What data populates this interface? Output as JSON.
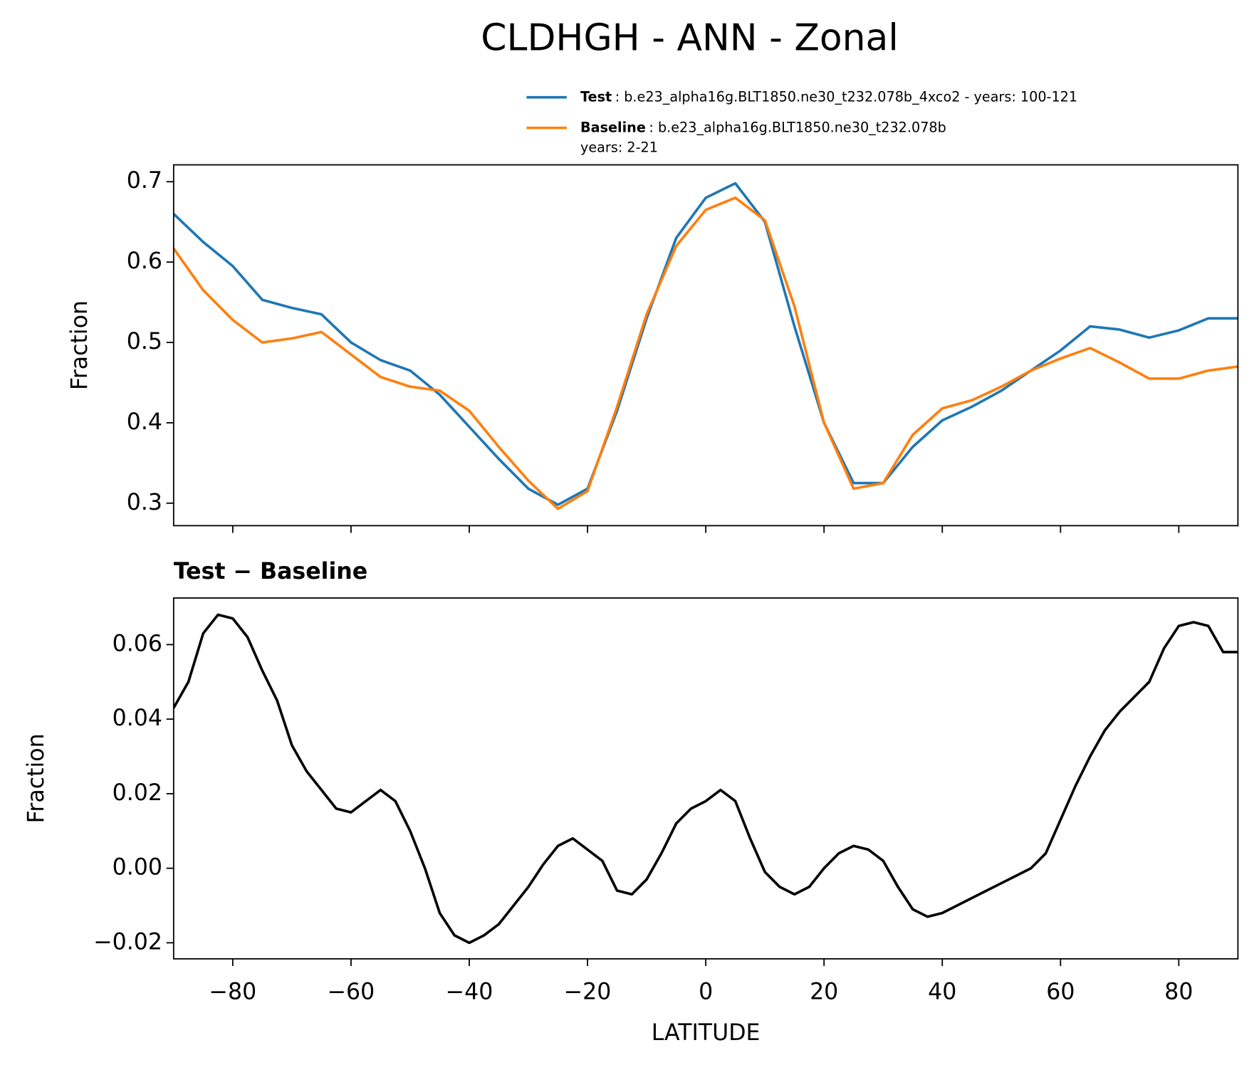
{
  "title": "CLDHGH - ANN - Zonal",
  "chart_data": [
    {
      "type": "line",
      "ylabel": "Fraction",
      "legend": "upper right",
      "xlim": [
        -90,
        90
      ],
      "xticks": [
        -80,
        -60,
        -40,
        -20,
        0,
        20,
        40,
        60,
        80
      ],
      "ylim": [
        0.272,
        0.721
      ],
      "yticks": [
        0.3,
        0.4,
        0.5,
        0.6,
        0.7
      ],
      "x": [
        -90,
        -85,
        -80,
        -75,
        -70,
        -65,
        -60,
        -55,
        -50,
        -45,
        -40,
        -35,
        -30,
        -25,
        -20,
        -15,
        -10,
        -5,
        0,
        5,
        10,
        15,
        20,
        25,
        30,
        35,
        40,
        45,
        50,
        55,
        60,
        65,
        70,
        75,
        80,
        85,
        90
      ],
      "series": [
        {
          "name": "Test",
          "description": [
            ": b.e23_alpha16g.BLT1850.ne30_t232.078b_4xco2 - years: 100-121"
          ],
          "color": "#1f77b4",
          "values": [
            0.66,
            0.625,
            0.595,
            0.553,
            0.543,
            0.535,
            0.5,
            0.478,
            0.465,
            0.435,
            0.395,
            0.355,
            0.318,
            0.298,
            0.318,
            0.415,
            0.53,
            0.63,
            0.68,
            0.698,
            0.65,
            0.52,
            0.4,
            0.325,
            0.325,
            0.37,
            0.403,
            0.42,
            0.44,
            0.465,
            0.49,
            0.52,
            0.516,
            0.506,
            0.515,
            0.53,
            0.53
          ]
        },
        {
          "name": "Baseline",
          "description": [
            ": b.e23_alpha16g.BLT1850.ne30_t232.078b",
            "years: 2-21"
          ],
          "color": "#ff7f0e",
          "values": [
            0.617,
            0.565,
            0.528,
            0.5,
            0.505,
            0.513,
            0.485,
            0.457,
            0.445,
            0.44,
            0.415,
            0.37,
            0.328,
            0.293,
            0.315,
            0.42,
            0.535,
            0.62,
            0.665,
            0.68,
            0.652,
            0.545,
            0.4,
            0.318,
            0.325,
            0.385,
            0.418,
            0.428,
            0.445,
            0.465,
            0.48,
            0.493,
            0.475,
            0.455,
            0.455,
            0.465,
            0.47
          ]
        }
      ]
    },
    {
      "type": "line",
      "title": "Test − Baseline",
      "ylabel": "Fraction",
      "xlabel": "LATITUDE",
      "color": "#000000",
      "xlim": [
        -90,
        90
      ],
      "xticks": [
        {
          "value": -80,
          "label": "−80"
        },
        {
          "value": -60,
          "label": "−60"
        },
        {
          "value": -40,
          "label": "−40"
        },
        {
          "value": -20,
          "label": "−20"
        },
        0,
        20,
        40,
        60,
        80
      ],
      "ylim": [
        -0.0243,
        0.0725
      ],
      "yticks": [
        {
          "value": -0.02,
          "label": "−0.02"
        },
        {
          "value": 0,
          "label": "0.00"
        },
        0.02,
        0.04,
        0.06
      ],
      "x": [
        -90,
        -87.5,
        -85,
        -82.5,
        -80,
        -77.5,
        -75,
        -72.5,
        -70,
        -67.5,
        -65,
        -62.5,
        -60,
        -57.5,
        -55,
        -52.5,
        -50,
        -47.5,
        -45,
        -42.5,
        -40,
        -37.5,
        -35,
        -32.5,
        -30,
        -27.5,
        -25,
        -22.5,
        -20,
        -17.5,
        -15,
        -12.5,
        -10,
        -7.5,
        -5,
        -2.5,
        0,
        2.5,
        5,
        7.5,
        10,
        12.5,
        15,
        17.5,
        20,
        22.5,
        25,
        27.5,
        30,
        32.5,
        35,
        37.5,
        40,
        42.5,
        45,
        47.5,
        50,
        52.5,
        55,
        57.5,
        60,
        62.5,
        65,
        67.5,
        70,
        72.5,
        75,
        77.5,
        80,
        82.5,
        85,
        87.5,
        90
      ],
      "values": [
        0.043,
        0.05,
        0.063,
        0.068,
        0.067,
        0.062,
        0.053,
        0.045,
        0.033,
        0.026,
        0.021,
        0.016,
        0.015,
        0.018,
        0.021,
        0.018,
        0.01,
        0.0,
        -0.012,
        -0.018,
        -0.02,
        -0.018,
        -0.015,
        -0.01,
        -0.005,
        0.001,
        0.006,
        0.008,
        0.005,
        0.002,
        -0.006,
        -0.007,
        -0.003,
        0.004,
        0.012,
        0.016,
        0.018,
        0.021,
        0.018,
        0.008,
        -0.001,
        -0.005,
        -0.007,
        -0.005,
        0.0,
        0.004,
        0.006,
        0.005,
        0.002,
        -0.005,
        -0.011,
        -0.013,
        -0.012,
        -0.01,
        -0.008,
        -0.006,
        -0.004,
        -0.002,
        0.0,
        0.004,
        0.013,
        0.022,
        0.03,
        0.037,
        0.042,
        0.046,
        0.05,
        0.059,
        0.065,
        0.066,
        0.065,
        0.058,
        0.058
      ]
    }
  ]
}
